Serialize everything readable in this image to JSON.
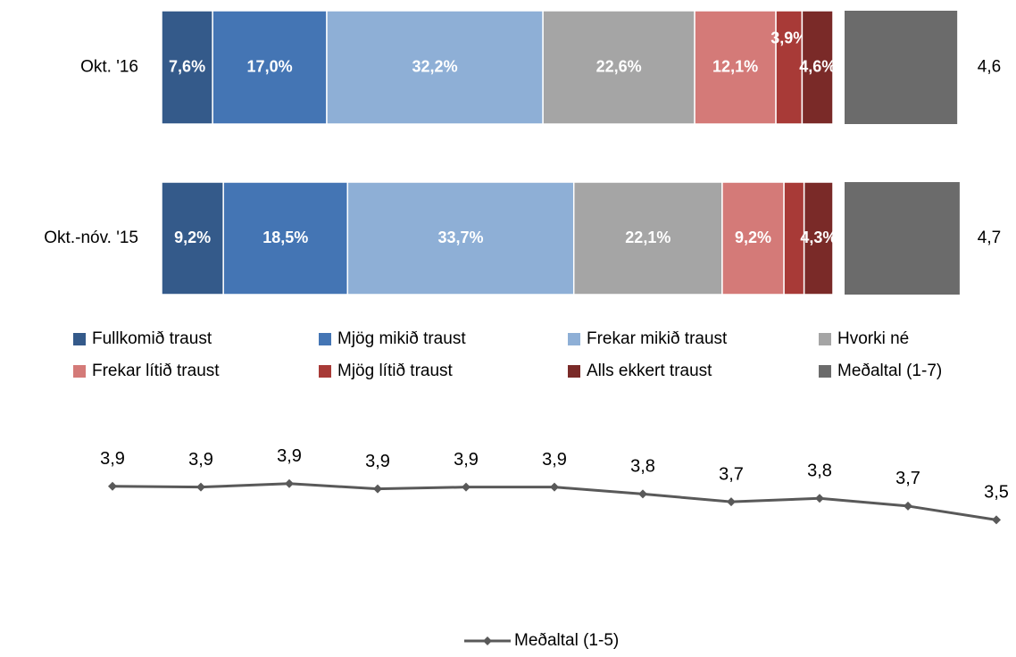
{
  "chart_data": [
    {
      "type": "stacked-bar-horizontal",
      "categories": [
        "Okt. '16",
        "Okt.-nóv. '15"
      ],
      "xlim": [
        0,
        100
      ],
      "x2lim": [
        0,
        7
      ],
      "series": [
        {
          "name": "Fullkomið traust",
          "color": "#345a8a",
          "values": [
            7.6,
            9.2
          ],
          "value_labels": [
            "7,6%",
            "9,2%"
          ]
        },
        {
          "name": "Mjög mikið traust",
          "color": "#4475b4",
          "values": [
            17.0,
            18.5
          ],
          "value_labels": [
            "17,0%",
            "18,5%"
          ]
        },
        {
          "name": "Frekar mikið traust",
          "color": "#8eafd6",
          "values": [
            32.2,
            33.7
          ],
          "value_labels": [
            "32,2%",
            "33,7%"
          ]
        },
        {
          "name": "Hvorki né",
          "color": "#a5a5a5",
          "values": [
            22.6,
            22.1
          ],
          "value_labels": [
            "22,6%",
            "22,1%"
          ]
        },
        {
          "name": "Frekar lítið traust",
          "color": "#d47a78",
          "values": [
            12.1,
            9.2
          ],
          "value_labels": [
            "12,1%",
            "9,2%"
          ]
        },
        {
          "name": "Mjög lítið traust",
          "color": "#a83a37",
          "values": [
            3.9,
            3.0
          ],
          "value_labels": [
            "3,9%",
            null
          ]
        },
        {
          "name": "Alls ekkert traust",
          "color": "#7a2a28",
          "values": [
            4.6,
            4.3
          ],
          "value_labels": [
            "4,6%",
            "4,3%"
          ]
        },
        {
          "name": "Meðaltal (1-7)",
          "color": "#6b6b6b",
          "axis": "x2",
          "values": [
            4.6,
            4.7
          ],
          "value_labels": [
            "4,6",
            "4,7"
          ]
        }
      ]
    },
    {
      "type": "line",
      "categories": [
        null,
        null,
        null,
        null,
        null,
        null,
        null,
        null,
        null,
        null,
        null
      ],
      "ylim": [
        3.4,
        4.0
      ],
      "series": [
        {
          "name": "Meðaltal (1-5)",
          "color": "#595959",
          "values": [
            3.91,
            3.9,
            3.94,
            3.88,
            3.9,
            3.9,
            3.82,
            3.73,
            3.77,
            3.68,
            3.52
          ],
          "value_labels": [
            "3,9",
            "3,9",
            "3,9",
            "3,9",
            "3,9",
            "3,9",
            "3,8",
            "3,7",
            "3,8",
            "3,7",
            "3,5"
          ]
        }
      ]
    }
  ]
}
